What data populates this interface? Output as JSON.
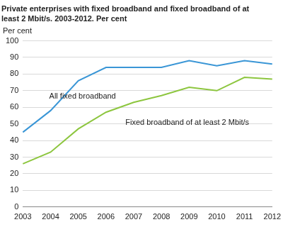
{
  "chart_data": {
    "type": "line",
    "title": [
      "Private enterprises with fixed broadband and fixed broadband of at",
      "least 2 Mbit/s. 2003-2012. Per cent"
    ],
    "y_label": "Per cent",
    "categories": [
      "2003",
      "2004",
      "2005",
      "2006",
      "2007",
      "2008",
      "2009",
      "2010",
      "2011",
      "2012"
    ],
    "series": [
      {
        "name": "All fixed broadband",
        "color": "#3a96d6",
        "values": [
          45,
          58,
          76,
          84,
          84,
          84,
          88,
          85,
          88,
          86
        ]
      },
      {
        "name": "Fixed broadband of at least 2 Mbit/s",
        "color": "#8dc63f",
        "values": [
          26,
          33,
          47,
          57,
          63,
          67,
          72,
          70,
          78,
          77
        ]
      }
    ],
    "ylim": [
      0,
      100
    ],
    "yticks": [
      0,
      10,
      20,
      30,
      40,
      50,
      60,
      70,
      80,
      90,
      100
    ],
    "grid": true
  }
}
